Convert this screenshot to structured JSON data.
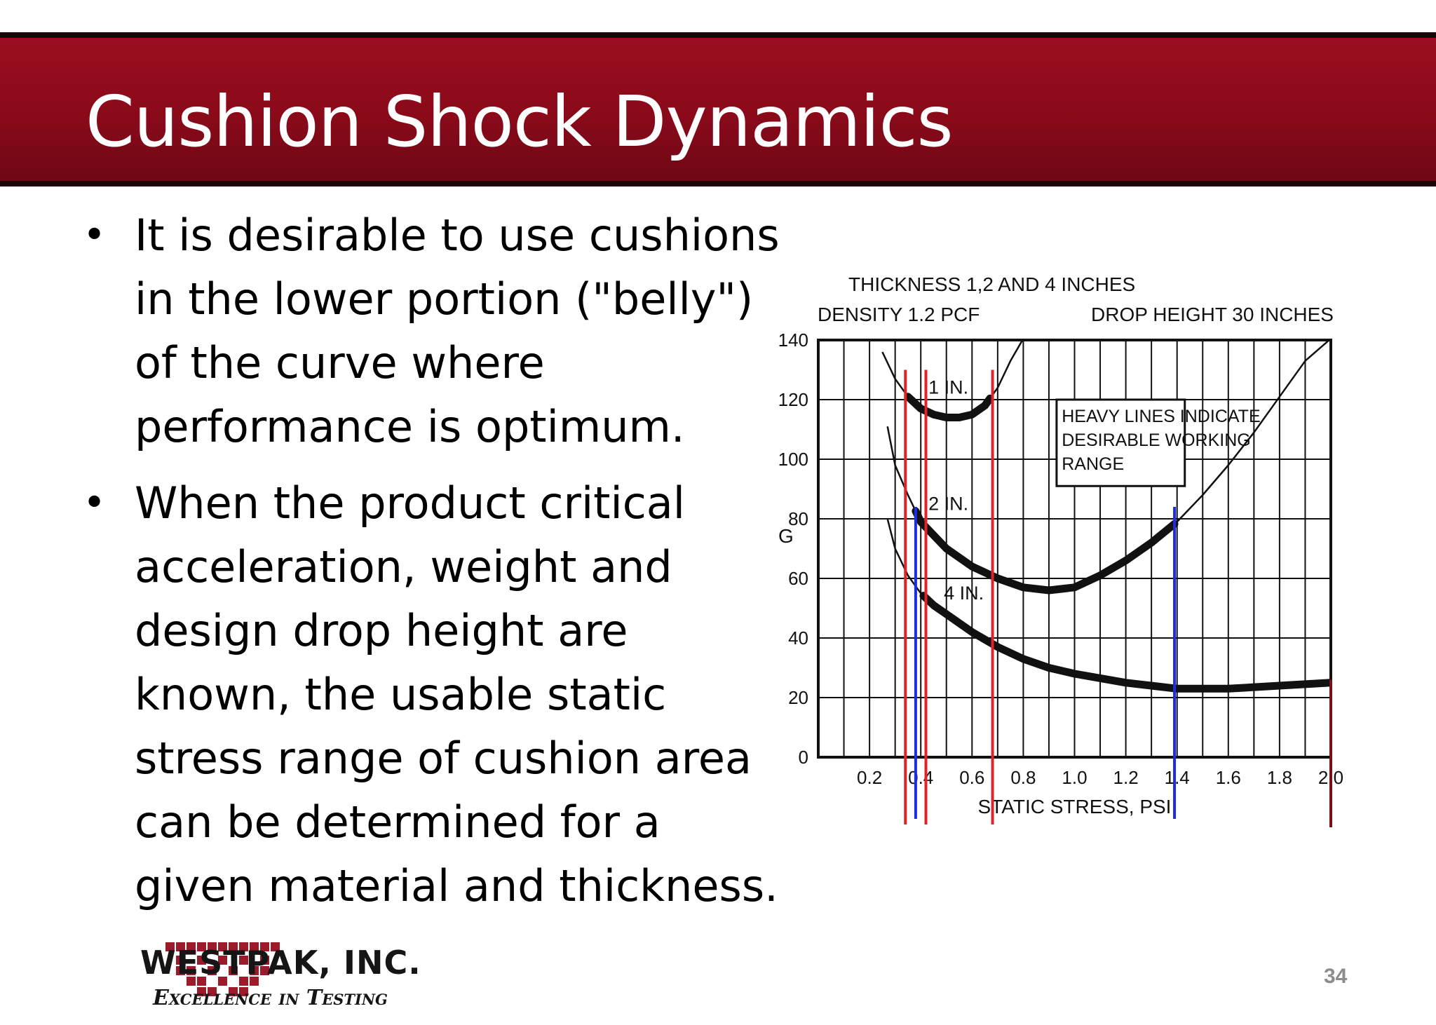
{
  "slide": {
    "title": "Cushion Shock Dynamics",
    "bullets": [
      "It is desirable to use cushions in the lower portion (\"belly\") of the curve where performance is optimum.",
      "When the product critical acceleration, weight and design drop height are known, the usable static stress range of cushion area can be determined for a given material and thickness."
    ],
    "bullet_glyph": "•",
    "page_number": "34"
  },
  "logo": {
    "name": "WESTPAK, INC.",
    "tagline": "Excellence in Testing",
    "color": "#9b1b2b"
  },
  "chart_data": {
    "type": "line",
    "subtitle_left": "THICKNESS 1,2 AND 4 INCHES",
    "density_label": "DENSITY 1.2 PCF",
    "drop_height_label": "DROP HEIGHT 30 INCHES",
    "xlabel": "STATIC STRESS, PSI",
    "ylabel": "G",
    "xlim": [
      0,
      2.0
    ],
    "ylim": [
      0,
      140
    ],
    "x_ticks": [
      "0.2",
      "0.4",
      "0.6",
      "0.8",
      "1.0",
      "1.2",
      "1.4",
      "1.6",
      "1.8",
      "2.0"
    ],
    "y_ticks": [
      "0",
      "20",
      "40",
      "60",
      "80",
      "100",
      "120",
      "140"
    ],
    "grid": true,
    "legend_note": [
      "HEAVY LINES INDICATE",
      "DESIRABLE WORKING",
      "RANGE"
    ],
    "series": [
      {
        "name": "1 IN.",
        "label_at": [
          0.43,
          122
        ],
        "x": [
          0.25,
          0.3,
          0.35,
          0.4,
          0.45,
          0.5,
          0.55,
          0.6,
          0.65,
          0.7,
          0.75,
          0.8
        ],
        "values": [
          136,
          127,
          121,
          117,
          115,
          114,
          114,
          115,
          118,
          124,
          133,
          147
        ],
        "heavy": [
          0.35,
          0.67
        ]
      },
      {
        "name": "2 IN.",
        "label_at": [
          0.43,
          83
        ],
        "x": [
          0.27,
          0.3,
          0.35,
          0.4,
          0.5,
          0.6,
          0.7,
          0.8,
          0.9,
          1.0,
          1.1,
          1.2,
          1.3,
          1.4,
          1.5,
          1.6,
          1.7,
          1.8,
          1.9,
          2.0
        ],
        "values": [
          111,
          98,
          88,
          79,
          70,
          64,
          60,
          57,
          56,
          57,
          61,
          66,
          72,
          79,
          88,
          98,
          109,
          121,
          133,
          146
        ],
        "heavy": [
          0.38,
          1.39
        ]
      },
      {
        "name": "4 IN.",
        "label_at": [
          0.49,
          53
        ],
        "x": [
          0.27,
          0.3,
          0.35,
          0.4,
          0.45,
          0.5,
          0.6,
          0.7,
          0.8,
          0.9,
          1.0,
          1.2,
          1.4,
          1.6,
          1.8,
          2.0
        ],
        "values": [
          80,
          70,
          61,
          55,
          51,
          48,
          42,
          37,
          33,
          30,
          28,
          25,
          23,
          23,
          24,
          25
        ],
        "heavy": [
          0.41,
          2.0
        ]
      }
    ],
    "markers": {
      "red": [
        0.34,
        0.42,
        0.68
      ],
      "blue": [
        0.38,
        1.39
      ],
      "dark_red": [
        2.0
      ],
      "colors": {
        "red": "#e0232b",
        "blue": "#1a2ee0",
        "dark_red": "#7a1018"
      }
    }
  }
}
